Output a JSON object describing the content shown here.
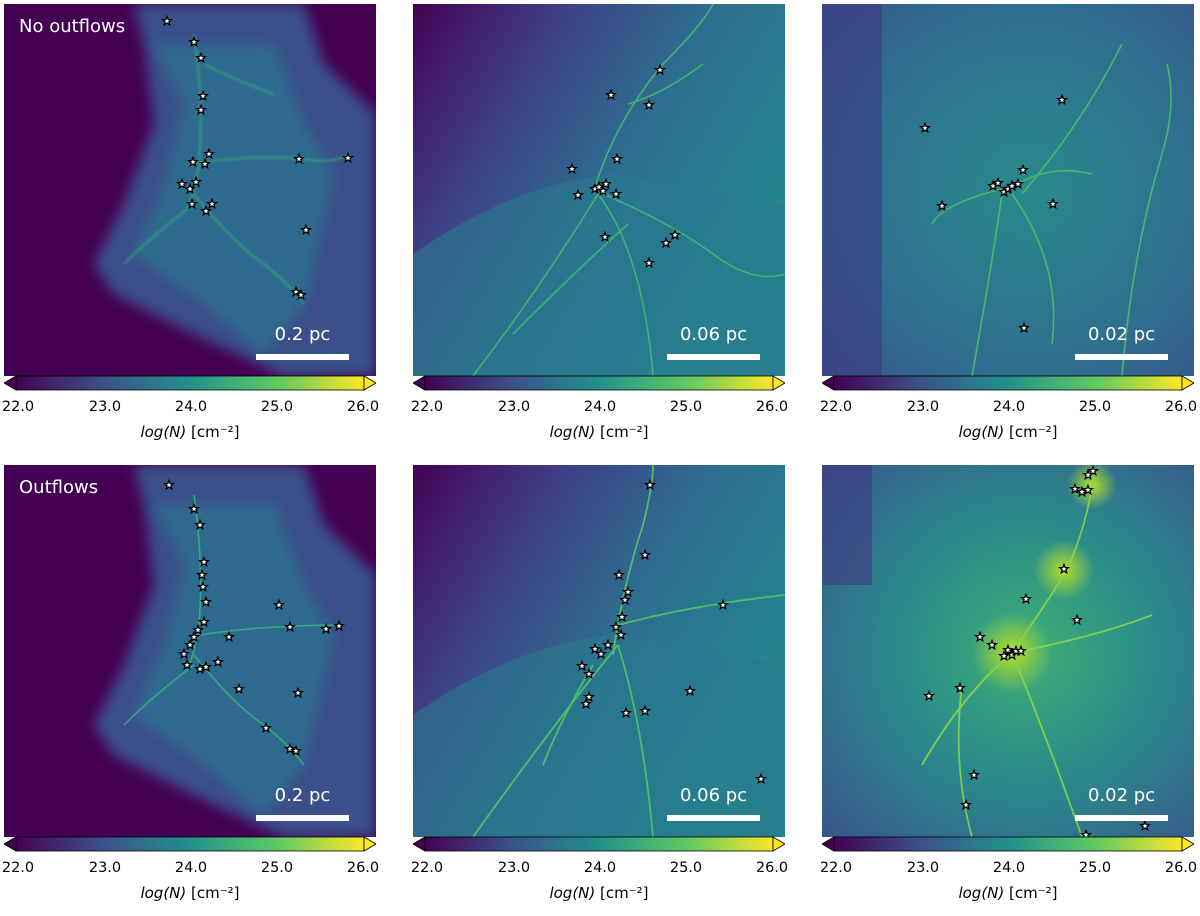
{
  "rows": [
    {
      "label": "No outflows"
    },
    {
      "label": "Outflows"
    }
  ],
  "scale_labels": [
    "0.2 pc",
    "0.06 pc",
    "0.02 pc"
  ],
  "colorbar": {
    "ticks": [
      "22.0",
      "23.0",
      "24.0",
      "25.0",
      "26.0"
    ],
    "label_var": "log(N)",
    "label_unit": "[cm⁻²]",
    "colormap": [
      "#440154",
      "#3b528b",
      "#21918c",
      "#5ec962",
      "#fde725"
    ]
  },
  "colors": {
    "background": "#440154",
    "gas": "#2e6f8e",
    "filament": "#35b779",
    "star_fill": "#ffffff",
    "star_edge": "#000000"
  }
}
